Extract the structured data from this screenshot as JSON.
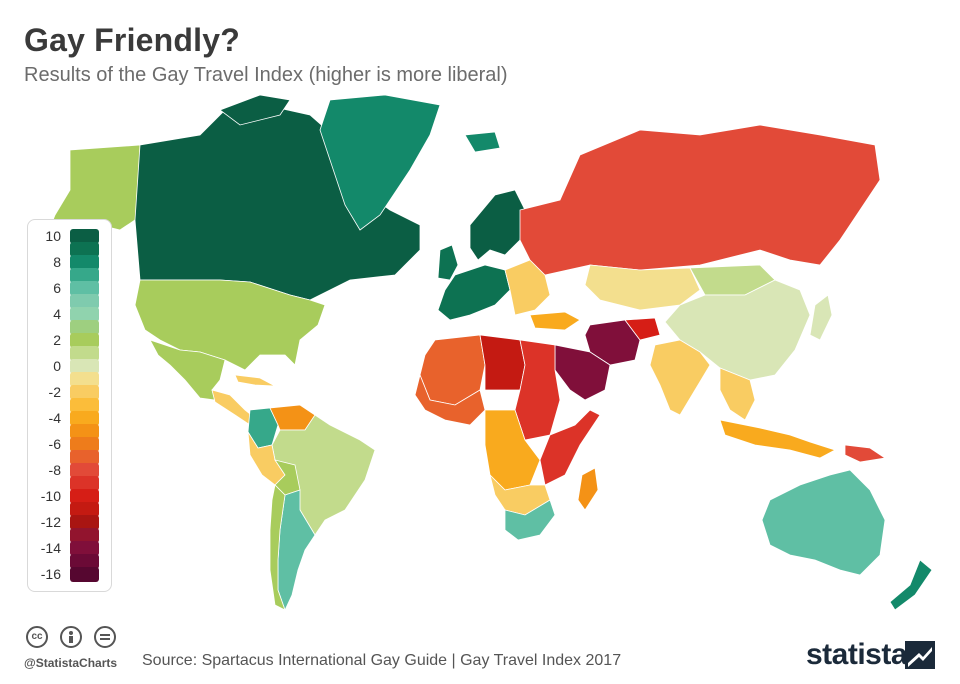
{
  "header": {
    "title": "Gay Friendly?",
    "subtitle": "Results of the Gay Travel Index (higher is more liberal)"
  },
  "legend": {
    "labels": [
      "10",
      "8",
      "6",
      "4",
      "2",
      "0",
      "-2",
      "-4",
      "-6",
      "-8",
      "-10",
      "-12",
      "-14",
      "-16"
    ],
    "swatches": [
      {
        "value": 10,
        "color": "#0b5e44"
      },
      {
        "value": 9,
        "color": "#0d7252"
      },
      {
        "value": 8,
        "color": "#13896a"
      },
      {
        "value": 7,
        "color": "#36a88a"
      },
      {
        "value": 6,
        "color": "#5fbfa4"
      },
      {
        "value": 5,
        "color": "#7fcbae"
      },
      {
        "value": 4,
        "color": "#90d3ae"
      },
      {
        "value": 3,
        "color": "#9ecf80"
      },
      {
        "value": 2,
        "color": "#a8cc5c"
      },
      {
        "value": 1,
        "color": "#c2db8c"
      },
      {
        "value": 0,
        "color": "#d9e6b6"
      },
      {
        "value": -1,
        "color": "#f3df8e"
      },
      {
        "value": -2,
        "color": "#f9cc62"
      },
      {
        "value": -3,
        "color": "#fbbd3a"
      },
      {
        "value": -4,
        "color": "#f9aa1e"
      },
      {
        "value": -5,
        "color": "#f49216"
      },
      {
        "value": -6,
        "color": "#ee7c1b"
      },
      {
        "value": -7,
        "color": "#e8622c"
      },
      {
        "value": -8,
        "color": "#e24a38"
      },
      {
        "value": -9,
        "color": "#dc3328"
      },
      {
        "value": -10,
        "color": "#d61e16"
      },
      {
        "value": -11,
        "color": "#c41a12"
      },
      {
        "value": -12,
        "color": "#a91512"
      },
      {
        "value": -13,
        "color": "#92142e"
      },
      {
        "value": -14,
        "color": "#800f3a"
      },
      {
        "value": -15,
        "color": "#6b0a36"
      },
      {
        "value": -16,
        "color": "#560730"
      }
    ]
  },
  "map_regions": [
    {
      "name": "Alaska",
      "color": "#a8cc5c"
    },
    {
      "name": "Canada",
      "color": "#0b5e44"
    },
    {
      "name": "Greenland",
      "color": "#13896a"
    },
    {
      "name": "United States",
      "color": "#a8cc5c"
    },
    {
      "name": "Mexico",
      "color": "#a8cc5c"
    },
    {
      "name": "Central America",
      "color": "#f9cc62"
    },
    {
      "name": "Colombia",
      "color": "#36a88a"
    },
    {
      "name": "Venezuela",
      "color": "#f49216"
    },
    {
      "name": "Brazil",
      "color": "#c2db8c"
    },
    {
      "name": "Peru",
      "color": "#f9cc62"
    },
    {
      "name": "Bolivia",
      "color": "#a8cc5c"
    },
    {
      "name": "Argentina",
      "color": "#5fbfa4"
    },
    {
      "name": "Chile",
      "color": "#a8cc5c"
    },
    {
      "name": "Scandinavia",
      "color": "#0b5e44"
    },
    {
      "name": "Western Europe",
      "color": "#0d7252"
    },
    {
      "name": "Eastern Europe",
      "color": "#f9cc62"
    },
    {
      "name": "Russia",
      "color": "#e24a38"
    },
    {
      "name": "Kazakhstan",
      "color": "#f3df8e"
    },
    {
      "name": "China",
      "color": "#d9e6b6"
    },
    {
      "name": "Mongolia",
      "color": "#c2db8c"
    },
    {
      "name": "Japan",
      "color": "#d9e6b6"
    },
    {
      "name": "India",
      "color": "#f9cc62"
    },
    {
      "name": "Iran",
      "color": "#800f3a"
    },
    {
      "name": "Saudi Arabia",
      "color": "#800f3a"
    },
    {
      "name": "Afghanistan",
      "color": "#d61e16"
    },
    {
      "name": "Turkey",
      "color": "#f9aa1e"
    },
    {
      "name": "Southeast Asia",
      "color": "#f9cc62"
    },
    {
      "name": "Indonesia",
      "color": "#f9aa1e"
    },
    {
      "name": "North Africa",
      "color": "#e8622c"
    },
    {
      "name": "Libya",
      "color": "#c41a12"
    },
    {
      "name": "Sudan",
      "color": "#dc3328"
    },
    {
      "name": "West Africa",
      "color": "#e8622c"
    },
    {
      "name": "Central Africa",
      "color": "#f9aa1e"
    },
    {
      "name": "East Africa",
      "color": "#dc3328"
    },
    {
      "name": "Southern Africa",
      "color": "#f9cc62"
    },
    {
      "name": "South Africa",
      "color": "#5fbfa4"
    },
    {
      "name": "Madagascar",
      "color": "#f49216"
    },
    {
      "name": "Australia",
      "color": "#5fbfa4"
    },
    {
      "name": "New Zealand",
      "color": "#13896a"
    },
    {
      "name": "Papua New Guinea",
      "color": "#e24a38"
    }
  ],
  "footer": {
    "handle": "@StatistaCharts",
    "source": "Source: Spartacus International Gay Guide | Gay Travel Index 2017",
    "brand": "statista",
    "license_icons": [
      "cc-icon",
      "by-icon",
      "nd-icon"
    ]
  }
}
